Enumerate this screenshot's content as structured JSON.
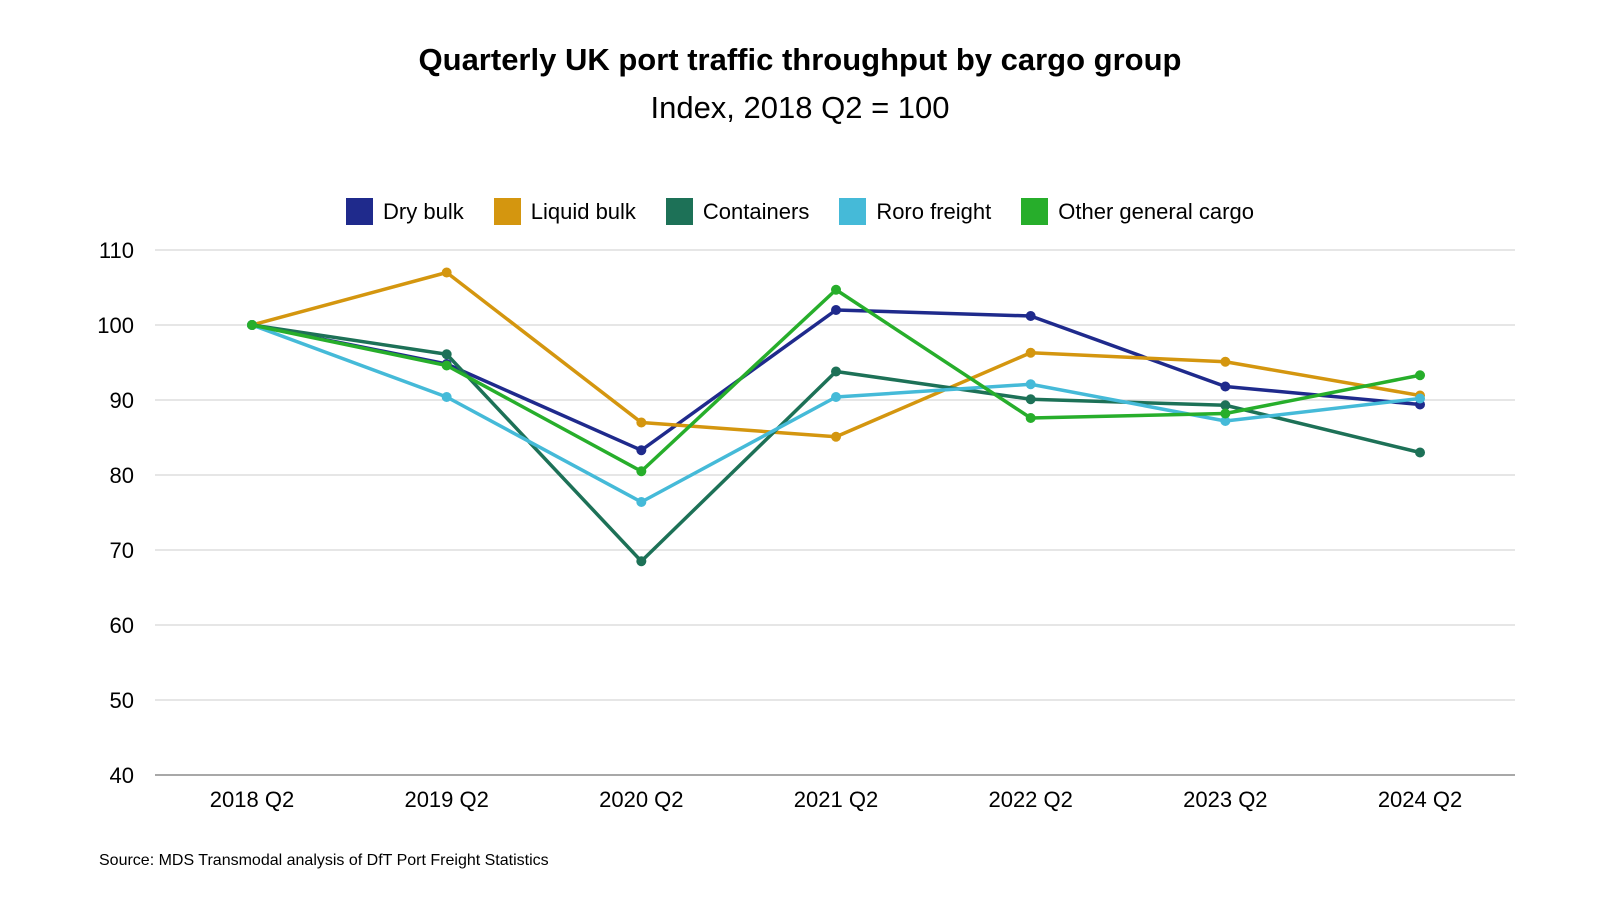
{
  "chart_data": {
    "type": "line",
    "title": "Quarterly UK port traffic throughput by cargo group",
    "subtitle": "Index, 2018 Q2 = 100",
    "categories": [
      "2018 Q2",
      "2019 Q2",
      "2020 Q2",
      "2021 Q2",
      "2022 Q2",
      "2023 Q2",
      "2024 Q2"
    ],
    "series": [
      {
        "name": "Dry bulk",
        "color": "#1f2a8c",
        "values": [
          100,
          94.8,
          83.3,
          102,
          101.2,
          91.8,
          89.4
        ]
      },
      {
        "name": "Liquid bulk",
        "color": "#d4960f",
        "values": [
          100,
          107,
          87,
          85.1,
          96.3,
          95.1,
          90.6
        ]
      },
      {
        "name": "Containers",
        "color": "#1d7157",
        "values": [
          100,
          96.1,
          68.5,
          93.8,
          90.1,
          89.3,
          83
        ]
      },
      {
        "name": "Roro freight",
        "color": "#45bad8",
        "values": [
          100,
          90.4,
          76.4,
          90.4,
          92.1,
          87.2,
          90.2
        ]
      },
      {
        "name": "Other general cargo",
        "color": "#27ae2b",
        "values": [
          100,
          94.6,
          80.5,
          104.7,
          87.6,
          88.2,
          93.3
        ]
      }
    ],
    "y_ticks": [
      "40",
      "50",
      "60",
      "70",
      "80",
      "90",
      "100",
      "110"
    ],
    "ylim": [
      40,
      110
    ],
    "xlabel": "",
    "ylabel": "",
    "grid": "horizontal",
    "legend_position": "top-center"
  },
  "source": "Source: MDS Transmodal analysis of DfT Port Freight Statistics"
}
